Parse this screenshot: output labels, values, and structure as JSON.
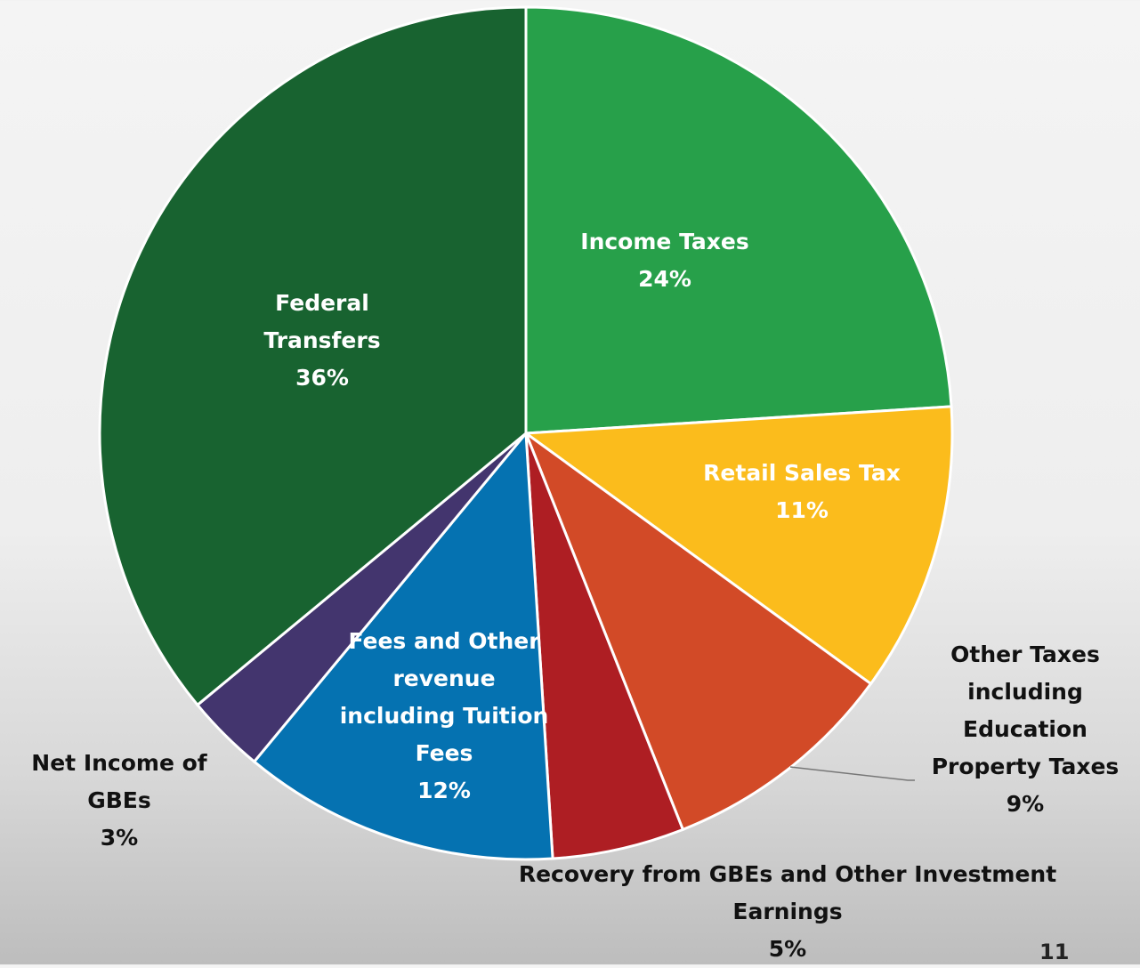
{
  "chart_data": {
    "type": "pie",
    "categories": [
      "Income Taxes",
      "Retail Sales Tax",
      "Other Taxes including Education Property Taxes",
      "Recovery from GBEs and Other Investment Earnings",
      "Fees and Other revenue including Tuition Fees",
      "Net Income of GBEs",
      "Federal Transfers"
    ],
    "values": [
      24,
      11,
      9,
      5,
      12,
      3,
      36
    ],
    "value_labels": [
      "24%",
      "11%",
      "9%",
      "5%",
      "12%",
      "3%",
      "36%"
    ],
    "colors": [
      "#27a04a",
      "#fbbc1c",
      "#d24a27",
      "#ae1e23",
      "#0572b1",
      "#43356e",
      "#186330"
    ]
  },
  "page_number": "11"
}
